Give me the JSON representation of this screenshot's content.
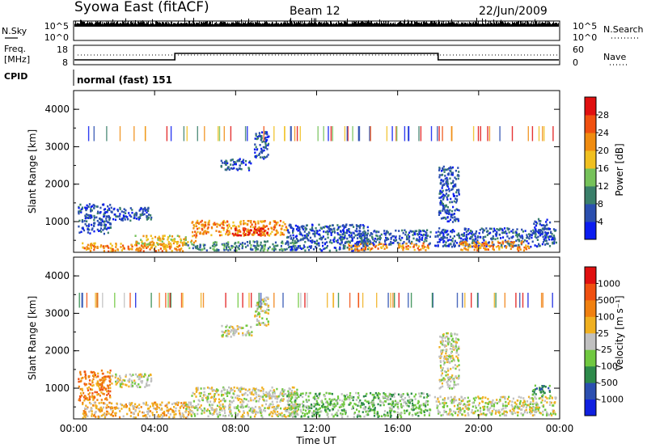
{
  "header": {
    "station": "Syowa East (fitACF)",
    "beam": "Beam 12",
    "date": "22/Jun/2009"
  },
  "top_panels": {
    "left_labels": {
      "nsky": "N.Sky",
      "freq": "Freq.",
      "freq_unit": "[MHz]",
      "cpid": "CPID"
    },
    "right_labels": {
      "nsearch": "N.Search",
      "nave": "Nave"
    },
    "noise_ticks_left": [
      "10^5",
      "10^0"
    ],
    "noise_ticks_right": [
      "10^5",
      "10^0"
    ],
    "freq_ticks_left": [
      "18",
      "8"
    ],
    "nave_ticks_right": [
      "60",
      "0"
    ],
    "cpid_text": "normal (fast) 151"
  },
  "chart_data": [
    {
      "type": "heatmap",
      "name": "power-panel",
      "ylabel": "Slant Range [km]",
      "xlabel": "",
      "x_ticks": [
        "00:00",
        "04:00",
        "08:00",
        "12:00",
        "16:00",
        "20:00",
        "00:00"
      ],
      "y_ticks": [
        "1000",
        "2000",
        "3000",
        "4000"
      ],
      "xlim_hours": [
        0,
        24
      ],
      "ylim_km": [
        180,
        4500
      ],
      "colorbar_label": "Power [dB]",
      "colorbar_ticks": [
        "4",
        "8",
        "12",
        "16",
        "20",
        "24",
        "28"
      ],
      "colors": [
        "#0b1cf0",
        "#2b4faf",
        "#3a7f6a",
        "#76c25a",
        "#f0c020",
        "#f08c10",
        "#f05010",
        "#e01010"
      ],
      "regions": [
        {
          "t0": 0.2,
          "t1": 1.8,
          "r0": 700,
          "r1": 1500,
          "level": 1
        },
        {
          "t0": 1.8,
          "t1": 3.8,
          "r0": 1050,
          "r1": 1400,
          "level": 1
        },
        {
          "t0": 0.4,
          "t1": 5.5,
          "r0": 230,
          "r1": 450,
          "level": 5
        },
        {
          "t0": 3.0,
          "t1": 6.0,
          "r0": 400,
          "r1": 650,
          "level": 4
        },
        {
          "t0": 5.8,
          "t1": 10.5,
          "r0": 650,
          "r1": 1050,
          "level": 5
        },
        {
          "t0": 7.8,
          "t1": 9.6,
          "r0": 650,
          "r1": 850,
          "level": 7
        },
        {
          "t0": 5.5,
          "t1": 11.0,
          "r0": 250,
          "r1": 500,
          "level": 2
        },
        {
          "t0": 8.9,
          "t1": 9.6,
          "r0": 2700,
          "r1": 3450,
          "level": 1
        },
        {
          "t0": 7.2,
          "t1": 8.8,
          "r0": 2400,
          "r1": 2700,
          "level": 1
        },
        {
          "t0": 10.5,
          "t1": 14.5,
          "r0": 250,
          "r1": 950,
          "level": 1
        },
        {
          "t0": 13.5,
          "t1": 15.5,
          "r0": 250,
          "r1": 450,
          "level": 5
        },
        {
          "t0": 14.0,
          "t1": 17.6,
          "r0": 400,
          "r1": 800,
          "level": 1
        },
        {
          "t0": 16.0,
          "t1": 17.5,
          "r0": 250,
          "r1": 450,
          "level": 5
        },
        {
          "t0": 17.8,
          "t1": 23.8,
          "r0": 350,
          "r1": 850,
          "level": 1
        },
        {
          "t0": 19.0,
          "t1": 22.5,
          "r0": 250,
          "r1": 500,
          "level": 5
        },
        {
          "t0": 18.0,
          "t1": 19.0,
          "r0": 1000,
          "r1": 2500,
          "level": 1
        },
        {
          "t0": 22.6,
          "t1": 23.5,
          "r0": 700,
          "r1": 1100,
          "level": 1
        }
      ]
    },
    {
      "type": "heatmap",
      "name": "velocity-panel",
      "ylabel": "Slant Range [km]",
      "xlabel": "Time UT",
      "x_ticks": [
        "00:00",
        "04:00",
        "08:00",
        "12:00",
        "16:00",
        "20:00",
        "00:00"
      ],
      "y_ticks": [
        "1000",
        "2000",
        "3000",
        "4000"
      ],
      "xlim_hours": [
        0,
        24
      ],
      "ylim_km": [
        180,
        4500
      ],
      "colorbar_label": "Velocity [m s⁻¹]",
      "colorbar_ticks": [
        "1000",
        "500",
        "100",
        "25",
        "-25",
        "-100",
        "-500",
        "-1000"
      ],
      "colors": [
        "#1020e0",
        "#2b4fb0",
        "#2d8a4a",
        "#70c840",
        "#c0c0c0",
        "#f0b020",
        "#f08010",
        "#f05010",
        "#e01010"
      ],
      "regions": [
        {
          "t0": 0.2,
          "t1": 1.8,
          "r0": 700,
          "r1": 1500,
          "level": 6
        },
        {
          "t0": 1.8,
          "t1": 3.8,
          "r0": 1050,
          "r1": 1400,
          "level": 4
        },
        {
          "t0": 0.4,
          "t1": 5.8,
          "r0": 230,
          "r1": 650,
          "level": 5
        },
        {
          "t0": 5.8,
          "t1": 11.0,
          "r0": 650,
          "r1": 1050,
          "level": 4
        },
        {
          "t0": 5.5,
          "t1": 11.0,
          "r0": 250,
          "r1": 600,
          "level": 4
        },
        {
          "t0": 8.9,
          "t1": 9.6,
          "r0": 2700,
          "r1": 3450,
          "level": 4
        },
        {
          "t0": 7.2,
          "t1": 8.8,
          "r0": 2400,
          "r1": 2700,
          "level": 4
        },
        {
          "t0": 10.5,
          "t1": 17.6,
          "r0": 250,
          "r1": 900,
          "level": 3
        },
        {
          "t0": 17.8,
          "t1": 23.8,
          "r0": 300,
          "r1": 800,
          "level": 4
        },
        {
          "t0": 18.0,
          "t1": 19.0,
          "r0": 1000,
          "r1": 2500,
          "level": 4
        },
        {
          "t0": 22.6,
          "t1": 23.5,
          "r0": 800,
          "r1": 1100,
          "level": 2
        }
      ]
    }
  ]
}
